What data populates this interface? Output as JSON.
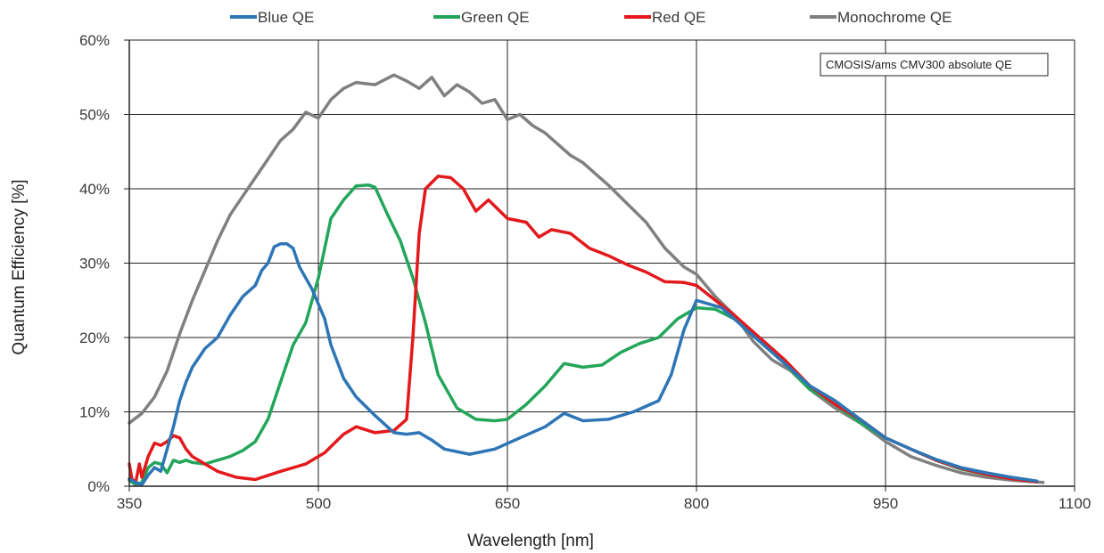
{
  "chart_data": {
    "type": "line",
    "xlabel": "Wavelength [nm]",
    "ylabel": "Quantum Efficiency [%]",
    "xlim": [
      350,
      1100
    ],
    "ylim": [
      0,
      60
    ],
    "x_ticks": [
      350,
      500,
      650,
      800,
      950,
      1100
    ],
    "y_ticks": [
      0,
      10,
      20,
      30,
      40,
      50,
      60
    ],
    "x_tick_labels": [
      "350",
      "500",
      "650",
      "800",
      "950",
      "1100"
    ],
    "y_tick_labels": [
      "0%",
      "10%",
      "20%",
      "30%",
      "40%",
      "50%",
      "60%"
    ],
    "grid": true,
    "legend_position": "top",
    "annotation": "CMOSIS/ams CMV300 absolute QE",
    "series": [
      {
        "name": "Blue QE",
        "color": "#2e75b6",
        "points": [
          [
            350,
            1.0
          ],
          [
            355,
            0.5
          ],
          [
            360,
            0.2
          ],
          [
            365,
            1.5
          ],
          [
            370,
            2.5
          ],
          [
            375,
            2.0
          ],
          [
            380,
            5.0
          ],
          [
            385,
            8.0
          ],
          [
            390,
            11.5
          ],
          [
            395,
            14.0
          ],
          [
            400,
            16.0
          ],
          [
            410,
            18.5
          ],
          [
            420,
            20.0
          ],
          [
            430,
            23.0
          ],
          [
            440,
            25.5
          ],
          [
            450,
            27.0
          ],
          [
            455,
            29.0
          ],
          [
            460,
            30.0
          ],
          [
            465,
            32.2
          ],
          [
            470,
            32.6
          ],
          [
            475,
            32.6
          ],
          [
            480,
            32.0
          ],
          [
            485,
            29.5
          ],
          [
            495,
            26.5
          ],
          [
            505,
            22.5
          ],
          [
            510,
            19.0
          ],
          [
            520,
            14.5
          ],
          [
            530,
            12.0
          ],
          [
            545,
            9.5
          ],
          [
            560,
            7.2
          ],
          [
            570,
            7.0
          ],
          [
            580,
            7.2
          ],
          [
            590,
            6.2
          ],
          [
            600,
            5.0
          ],
          [
            620,
            4.3
          ],
          [
            640,
            5.0
          ],
          [
            660,
            6.5
          ],
          [
            680,
            8.0
          ],
          [
            695,
            9.8
          ],
          [
            710,
            8.8
          ],
          [
            730,
            9.0
          ],
          [
            750,
            10.0
          ],
          [
            770,
            11.5
          ],
          [
            780,
            15.0
          ],
          [
            790,
            21.0
          ],
          [
            800,
            25.0
          ],
          [
            810,
            24.5
          ],
          [
            820,
            24.0
          ],
          [
            830,
            22.5
          ],
          [
            850,
            19.5
          ],
          [
            870,
            16.5
          ],
          [
            890,
            13.5
          ],
          [
            910,
            11.5
          ],
          [
            930,
            9.0
          ],
          [
            950,
            6.5
          ],
          [
            970,
            5.0
          ],
          [
            990,
            3.6
          ],
          [
            1010,
            2.5
          ],
          [
            1030,
            1.8
          ],
          [
            1050,
            1.2
          ],
          [
            1070,
            0.7
          ]
        ]
      },
      {
        "name": "Green QE",
        "color": "#23a65a",
        "points": [
          [
            350,
            0.8
          ],
          [
            355,
            0.2
          ],
          [
            360,
            0.5
          ],
          [
            365,
            2.5
          ],
          [
            370,
            3.2
          ],
          [
            375,
            3.0
          ],
          [
            380,
            1.8
          ],
          [
            385,
            3.5
          ],
          [
            390,
            3.2
          ],
          [
            395,
            3.5
          ],
          [
            400,
            3.2
          ],
          [
            410,
            3.0
          ],
          [
            420,
            3.5
          ],
          [
            430,
            4.0
          ],
          [
            440,
            4.8
          ],
          [
            450,
            6.0
          ],
          [
            460,
            9.0
          ],
          [
            470,
            14.0
          ],
          [
            480,
            19.0
          ],
          [
            490,
            22.0
          ],
          [
            500,
            28.0
          ],
          [
            505,
            32.0
          ],
          [
            510,
            36.0
          ],
          [
            520,
            38.5
          ],
          [
            530,
            40.4
          ],
          [
            540,
            40.5
          ],
          [
            545,
            40.2
          ],
          [
            555,
            36.5
          ],
          [
            565,
            33.0
          ],
          [
            575,
            28.0
          ],
          [
            585,
            22.0
          ],
          [
            595,
            15.0
          ],
          [
            610,
            10.5
          ],
          [
            625,
            9.0
          ],
          [
            640,
            8.8
          ],
          [
            650,
            9.0
          ],
          [
            665,
            11.0
          ],
          [
            680,
            13.5
          ],
          [
            695,
            16.5
          ],
          [
            710,
            16.0
          ],
          [
            725,
            16.3
          ],
          [
            740,
            18.0
          ],
          [
            755,
            19.2
          ],
          [
            770,
            20.0
          ],
          [
            785,
            22.5
          ],
          [
            800,
            24.0
          ],
          [
            815,
            23.8
          ],
          [
            830,
            22.5
          ],
          [
            850,
            19.5
          ],
          [
            870,
            16.5
          ],
          [
            890,
            13.0
          ],
          [
            910,
            11.0
          ],
          [
            930,
            8.5
          ],
          [
            950,
            6.5
          ],
          [
            970,
            5.0
          ],
          [
            990,
            3.5
          ],
          [
            1010,
            2.3
          ],
          [
            1030,
            1.6
          ],
          [
            1050,
            1.0
          ],
          [
            1070,
            0.6
          ]
        ]
      },
      {
        "name": "Red QE",
        "color": "#e3191c",
        "points": [
          [
            350,
            3.0
          ],
          [
            352,
            1.0
          ],
          [
            355,
            0.5
          ],
          [
            358,
            3.0
          ],
          [
            360,
            1.2
          ],
          [
            365,
            4.0
          ],
          [
            370,
            5.8
          ],
          [
            375,
            5.5
          ],
          [
            380,
            6.0
          ],
          [
            385,
            6.8
          ],
          [
            390,
            6.5
          ],
          [
            395,
            5.0
          ],
          [
            400,
            4.0
          ],
          [
            410,
            3.0
          ],
          [
            420,
            2.0
          ],
          [
            435,
            1.2
          ],
          [
            450,
            0.9
          ],
          [
            470,
            2.0
          ],
          [
            490,
            3.0
          ],
          [
            505,
            4.5
          ],
          [
            520,
            7.0
          ],
          [
            530,
            8.0
          ],
          [
            545,
            7.2
          ],
          [
            560,
            7.5
          ],
          [
            570,
            9.0
          ],
          [
            575,
            20.0
          ],
          [
            580,
            34.0
          ],
          [
            585,
            40.0
          ],
          [
            595,
            41.7
          ],
          [
            605,
            41.5
          ],
          [
            615,
            40.0
          ],
          [
            625,
            37.0
          ],
          [
            635,
            38.5
          ],
          [
            650,
            36.0
          ],
          [
            665,
            35.5
          ],
          [
            675,
            33.5
          ],
          [
            685,
            34.5
          ],
          [
            700,
            34.0
          ],
          [
            715,
            32.0
          ],
          [
            730,
            31.0
          ],
          [
            745,
            29.8
          ],
          [
            760,
            28.8
          ],
          [
            775,
            27.5
          ],
          [
            790,
            27.4
          ],
          [
            800,
            27.0
          ],
          [
            815,
            25.0
          ],
          [
            830,
            23.0
          ],
          [
            850,
            20.0
          ],
          [
            870,
            17.0
          ],
          [
            890,
            13.5
          ],
          [
            910,
            11.0
          ],
          [
            930,
            9.0
          ],
          [
            950,
            6.5
          ],
          [
            970,
            5.0
          ],
          [
            990,
            3.5
          ],
          [
            1010,
            2.4
          ],
          [
            1030,
            1.6
          ],
          [
            1050,
            1.0
          ],
          [
            1070,
            0.6
          ]
        ]
      },
      {
        "name": "Monochrome QE",
        "color": "#808080",
        "points": [
          [
            350,
            8.5
          ],
          [
            360,
            9.8
          ],
          [
            370,
            12.0
          ],
          [
            380,
            15.5
          ],
          [
            390,
            20.5
          ],
          [
            400,
            25.0
          ],
          [
            410,
            29.0
          ],
          [
            420,
            33.0
          ],
          [
            430,
            36.5
          ],
          [
            440,
            39.0
          ],
          [
            450,
            41.5
          ],
          [
            460,
            44.0
          ],
          [
            470,
            46.5
          ],
          [
            480,
            48.0
          ],
          [
            490,
            50.3
          ],
          [
            500,
            49.5
          ],
          [
            510,
            52.0
          ],
          [
            520,
            53.5
          ],
          [
            530,
            54.3
          ],
          [
            545,
            54.0
          ],
          [
            560,
            55.3
          ],
          [
            570,
            54.5
          ],
          [
            580,
            53.5
          ],
          [
            590,
            55.0
          ],
          [
            600,
            52.5
          ],
          [
            610,
            54.0
          ],
          [
            620,
            53.0
          ],
          [
            630,
            51.5
          ],
          [
            640,
            52.0
          ],
          [
            650,
            49.3
          ],
          [
            660,
            50.0
          ],
          [
            670,
            48.5
          ],
          [
            680,
            47.5
          ],
          [
            690,
            46.0
          ],
          [
            700,
            44.5
          ],
          [
            710,
            43.5
          ],
          [
            720,
            42.0
          ],
          [
            730,
            40.5
          ],
          [
            745,
            38.0
          ],
          [
            760,
            35.5
          ],
          [
            775,
            32.0
          ],
          [
            790,
            29.5
          ],
          [
            800,
            28.5
          ],
          [
            815,
            25.5
          ],
          [
            830,
            23.0
          ],
          [
            845,
            19.5
          ],
          [
            860,
            17.0
          ],
          [
            875,
            15.5
          ],
          [
            890,
            13.0
          ],
          [
            910,
            10.5
          ],
          [
            930,
            8.5
          ],
          [
            950,
            6.0
          ],
          [
            970,
            4.0
          ],
          [
            990,
            2.8
          ],
          [
            1010,
            1.8
          ],
          [
            1030,
            1.2
          ],
          [
            1050,
            0.8
          ],
          [
            1075,
            0.5
          ]
        ]
      }
    ]
  }
}
